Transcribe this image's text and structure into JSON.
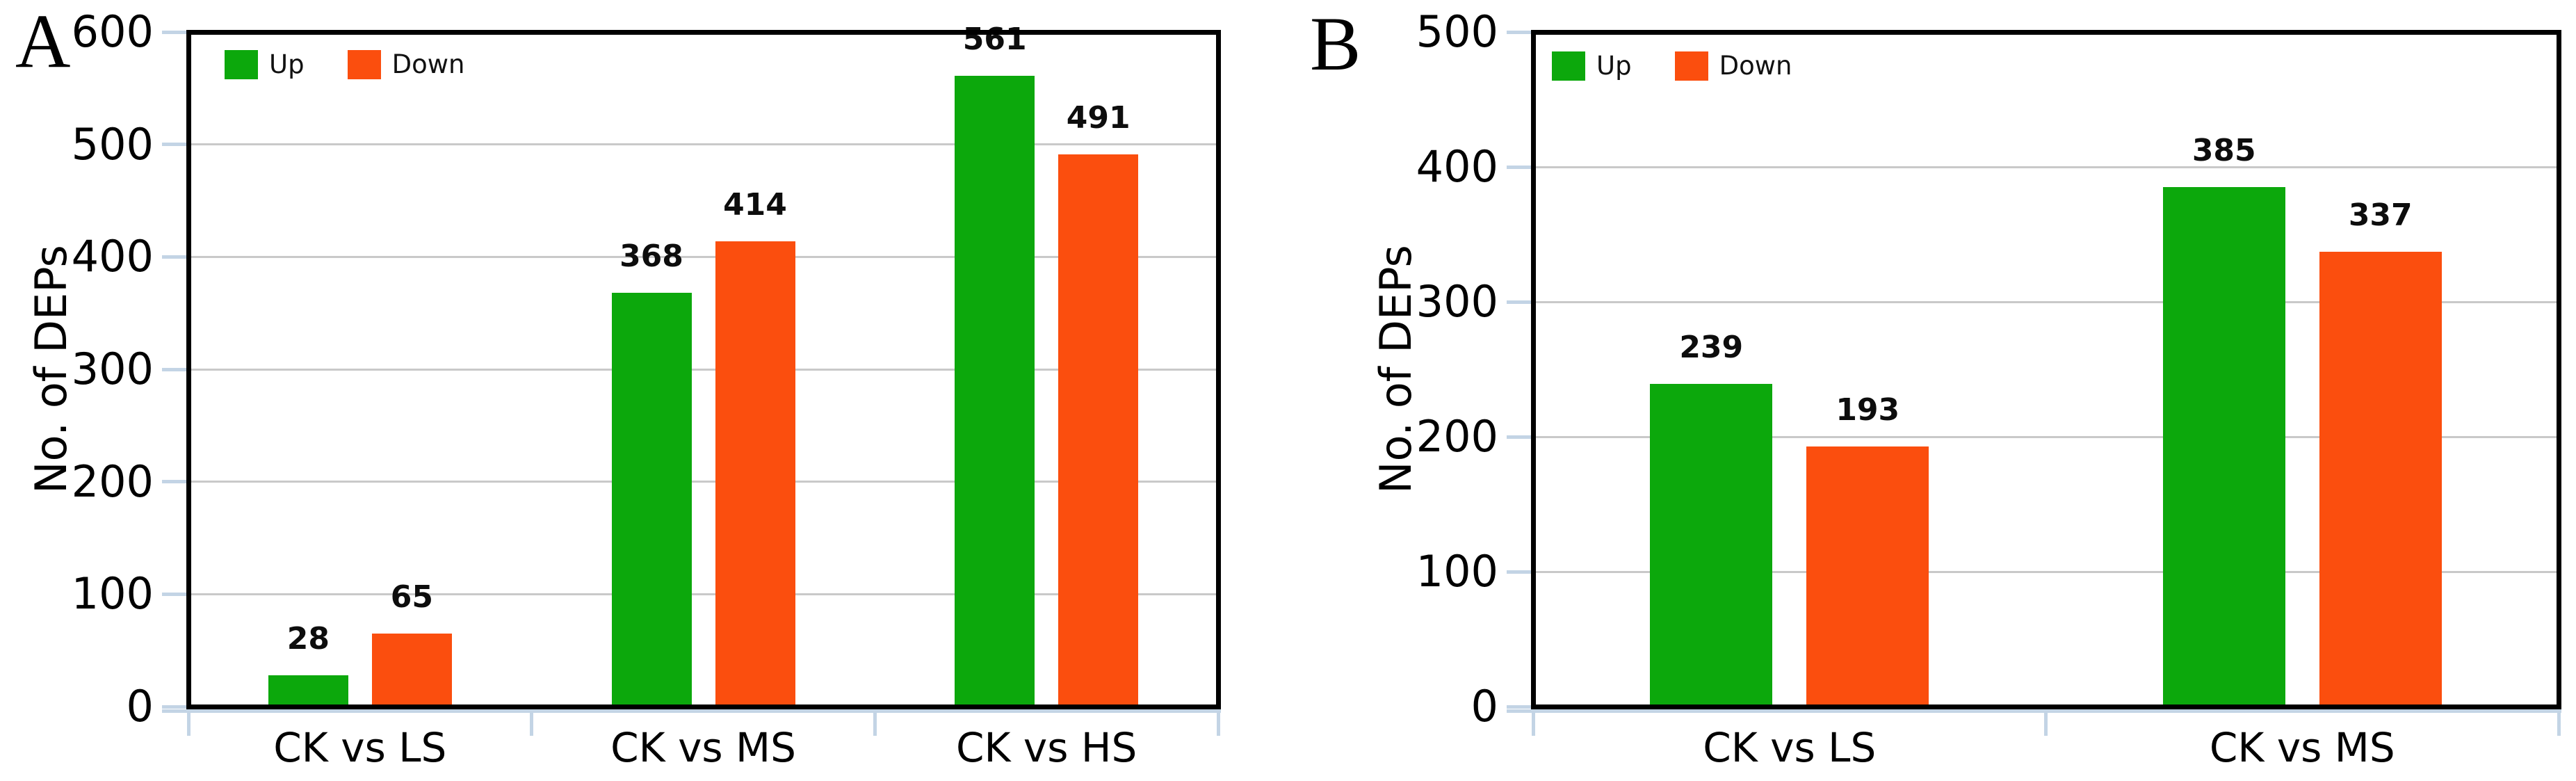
{
  "figure": {
    "background": "#ffffff"
  },
  "chart_data": [
    {
      "type": "bar",
      "panel_label": "A",
      "ylabel": "No. of DEPs",
      "categories": [
        "CK vs LS",
        "CK vs MS",
        "CK vs HS"
      ],
      "series": [
        {
          "name": "Up",
          "color": "#0CA80C",
          "values": [
            28,
            368,
            561
          ]
        },
        {
          "name": "Down",
          "color": "#FB4E0E",
          "values": [
            65,
            414,
            491
          ]
        }
      ],
      "value_labels": [
        [
          "28",
          "368",
          "561"
        ],
        [
          "65",
          "414",
          "491"
        ]
      ],
      "ylim": [
        0,
        600
      ],
      "ytick_step": 100,
      "ytick_labels": [
        "0",
        "100",
        "200",
        "300",
        "400",
        "500",
        "600"
      ],
      "grid": true,
      "legend_position": "top-left"
    },
    {
      "type": "bar",
      "panel_label": "B",
      "ylabel": "No. of DEPs",
      "categories": [
        "CK vs LS",
        "CK vs MS"
      ],
      "series": [
        {
          "name": "Up",
          "color": "#0CA80C",
          "values": [
            239,
            385
          ]
        },
        {
          "name": "Down",
          "color": "#FB4E0E",
          "values": [
            193,
            337
          ]
        }
      ],
      "value_labels": [
        [
          "239",
          "385"
        ],
        [
          "193",
          "337"
        ]
      ],
      "ylim": [
        0,
        500
      ],
      "ytick_step": 100,
      "ytick_labels": [
        "0",
        "100",
        "200",
        "300",
        "400",
        "500"
      ],
      "grid": true,
      "legend_position": "top-left"
    }
  ],
  "colors": {
    "up": "#0CA80C",
    "down": "#FB4E0E",
    "gridline": "#C9C9C9",
    "axis_frame": "#000000",
    "axis_tick": "#C3D4E5",
    "text": "#000000"
  }
}
